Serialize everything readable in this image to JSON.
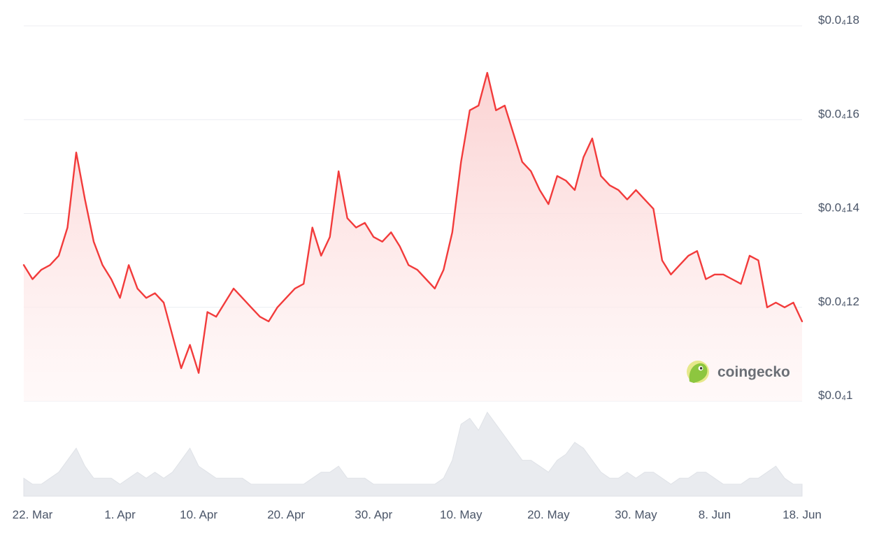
{
  "chart_data": {
    "type": "area",
    "title": "",
    "xlabel": "",
    "ylabel": "",
    "y_unit": "USD",
    "ylim": [
      1e-05,
      1.8e-05
    ],
    "grid": true,
    "line_color": "#f23b3b",
    "fill_color": "#fde4e4",
    "volume_color": "#e9ebef",
    "watermark": "coingecko",
    "y_ticks": [
      {
        "value": 1e-05,
        "label": "$0.0₄1"
      },
      {
        "value": 1.2e-05,
        "label": "$0.0₄12"
      },
      {
        "value": 1.4e-05,
        "label": "$0.0₄14"
      },
      {
        "value": 1.6e-05,
        "label": "$0.0₄16"
      },
      {
        "value": 1.8e-05,
        "label": "$0.0₄18"
      }
    ],
    "x_ticks": [
      {
        "date": "2024-03-22",
        "label": "22. Mar"
      },
      {
        "date": "2024-04-01",
        "label": "1. Apr"
      },
      {
        "date": "2024-04-10",
        "label": "10. Apr"
      },
      {
        "date": "2024-04-20",
        "label": "20. Apr"
      },
      {
        "date": "2024-04-30",
        "label": "30. Apr"
      },
      {
        "date": "2024-05-10",
        "label": "10. May"
      },
      {
        "date": "2024-05-20",
        "label": "20. May"
      },
      {
        "date": "2024-05-30",
        "label": "30. May"
      },
      {
        "date": "2024-06-08",
        "label": "8. Jun"
      },
      {
        "date": "2024-06-18",
        "label": "18. Jun"
      }
    ],
    "x": [
      "2024-03-21",
      "2024-03-22",
      "2024-03-23",
      "2024-03-24",
      "2024-03-25",
      "2024-03-26",
      "2024-03-27",
      "2024-03-28",
      "2024-03-29",
      "2024-03-30",
      "2024-03-31",
      "2024-04-01",
      "2024-04-02",
      "2024-04-03",
      "2024-04-04",
      "2024-04-05",
      "2024-04-06",
      "2024-04-07",
      "2024-04-08",
      "2024-04-09",
      "2024-04-10",
      "2024-04-11",
      "2024-04-12",
      "2024-04-13",
      "2024-04-14",
      "2024-04-15",
      "2024-04-16",
      "2024-04-17",
      "2024-04-18",
      "2024-04-19",
      "2024-04-20",
      "2024-04-21",
      "2024-04-22",
      "2024-04-23",
      "2024-04-24",
      "2024-04-25",
      "2024-04-26",
      "2024-04-27",
      "2024-04-28",
      "2024-04-29",
      "2024-04-30",
      "2024-05-01",
      "2024-05-02",
      "2024-05-03",
      "2024-05-04",
      "2024-05-05",
      "2024-05-06",
      "2024-05-07",
      "2024-05-08",
      "2024-05-09",
      "2024-05-10",
      "2024-05-11",
      "2024-05-12",
      "2024-05-13",
      "2024-05-14",
      "2024-05-15",
      "2024-05-16",
      "2024-05-17",
      "2024-05-18",
      "2024-05-19",
      "2024-05-20",
      "2024-05-21",
      "2024-05-22",
      "2024-05-23",
      "2024-05-24",
      "2024-05-25",
      "2024-05-26",
      "2024-05-27",
      "2024-05-28",
      "2024-05-29",
      "2024-05-30",
      "2024-05-31",
      "2024-06-01",
      "2024-06-02",
      "2024-06-03",
      "2024-06-04",
      "2024-06-05",
      "2024-06-06",
      "2024-06-07",
      "2024-06-08",
      "2024-06-09",
      "2024-06-10",
      "2024-06-11",
      "2024-06-12",
      "2024-06-13",
      "2024-06-14",
      "2024-06-15",
      "2024-06-16",
      "2024-06-17",
      "2024-06-18"
    ],
    "series": [
      {
        "type": "area",
        "values": [
          1.29e-05,
          1.26e-05,
          1.28e-05,
          1.29e-05,
          1.31e-05,
          1.37e-05,
          1.53e-05,
          1.43e-05,
          1.34e-05,
          1.29e-05,
          1.26e-05,
          1.22e-05,
          1.29e-05,
          1.24e-05,
          1.22e-05,
          1.23e-05,
          1.21e-05,
          1.14e-05,
          1.07e-05,
          1.12e-05,
          1.06e-05,
          1.19e-05,
          1.18e-05,
          1.21e-05,
          1.24e-05,
          1.22e-05,
          1.2e-05,
          1.18e-05,
          1.17e-05,
          1.2e-05,
          1.22e-05,
          1.24e-05,
          1.25e-05,
          1.37e-05,
          1.31e-05,
          1.35e-05,
          1.49e-05,
          1.39e-05,
          1.37e-05,
          1.38e-05,
          1.35e-05,
          1.34e-05,
          1.36e-05,
          1.33e-05,
          1.29e-05,
          1.28e-05,
          1.26e-05,
          1.24e-05,
          1.28e-05,
          1.36e-05,
          1.51e-05,
          1.62e-05,
          1.63e-05,
          1.7e-05,
          1.62e-05,
          1.63e-05,
          1.57e-05,
          1.51e-05,
          1.49e-05,
          1.45e-05,
          1.42e-05,
          1.48e-05,
          1.47e-05,
          1.45e-05,
          1.52e-05,
          1.56e-05,
          1.48e-05,
          1.46e-05,
          1.45e-05,
          1.43e-05,
          1.45e-05,
          1.43e-05,
          1.41e-05,
          1.3e-05,
          1.27e-05,
          1.29e-05,
          1.31e-05,
          1.32e-05,
          1.26e-05,
          1.27e-05,
          1.27e-05,
          1.26e-05,
          1.25e-05,
          1.31e-05,
          1.3e-05,
          1.2e-05,
          1.21e-05,
          1.2e-05,
          1.21e-05,
          1.17e-05
        ]
      },
      {
        "type": "volume",
        "values": [
          3,
          2,
          2,
          3,
          4,
          6,
          8,
          5,
          3,
          3,
          3,
          2,
          3,
          4,
          3,
          4,
          3,
          4,
          6,
          8,
          5,
          4,
          3,
          3,
          3,
          3,
          2,
          2,
          2,
          2,
          2,
          2,
          2,
          3,
          4,
          4,
          5,
          3,
          3,
          3,
          2,
          2,
          2,
          2,
          2,
          2,
          2,
          2,
          3,
          6,
          12,
          13,
          11,
          14,
          12,
          10,
          8,
          6,
          6,
          5,
          4,
          6,
          7,
          9,
          8,
          6,
          4,
          3,
          3,
          4,
          3,
          4,
          4,
          3,
          2,
          3,
          3,
          4,
          4,
          3,
          2,
          2,
          2,
          3,
          3,
          4,
          5,
          3,
          2,
          2
        ]
      }
    ]
  }
}
